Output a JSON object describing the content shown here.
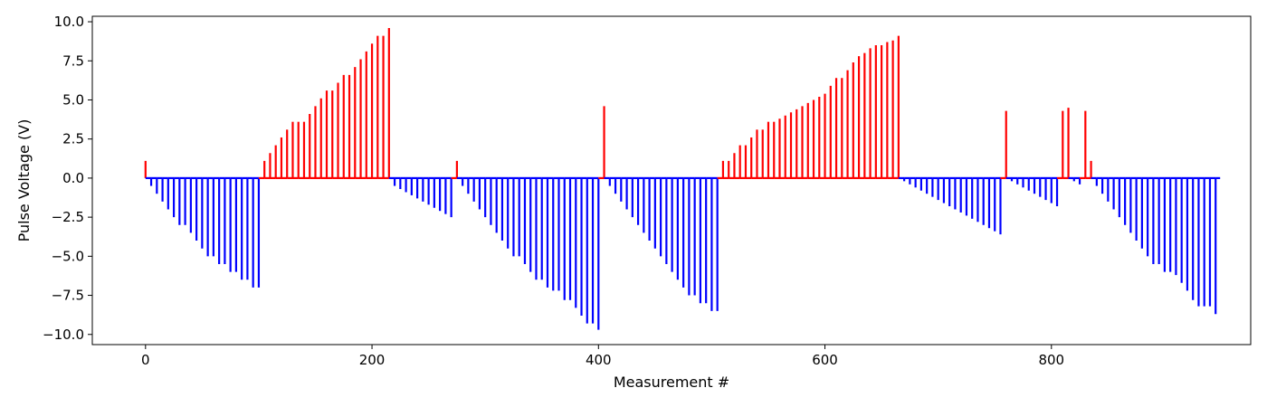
{
  "chart_data": {
    "type": "bar",
    "title": "",
    "xlabel": "Measurement #",
    "ylabel": "Pulse Voltage (V)",
    "xlim": [
      -47,
      976
    ],
    "ylim": [
      -10.65,
      10.35
    ],
    "xticks": [
      0,
      200,
      400,
      600,
      800
    ],
    "yticks": [
      -10.0,
      -7.5,
      -5.0,
      -2.5,
      0.0,
      2.5,
      5.0,
      7.5,
      10.0
    ],
    "xtick_labels": [
      "0",
      "200",
      "400",
      "600",
      "800"
    ],
    "ytick_labels": [
      "−10.0",
      "−7.5",
      "−5.0",
      "−2.5",
      "0.0",
      "2.5",
      "5.0",
      "7.5",
      "10.0"
    ],
    "colors": {
      "positive": "#ff0000",
      "negative": "#0000ff",
      "axes": "#000000"
    },
    "baseline": {
      "from": 0,
      "to": 949,
      "value": 0
    },
    "grid": false,
    "series": [
      {
        "x": [
          0,
          5,
          10,
          15,
          20,
          25,
          30,
          35,
          40,
          45,
          50,
          55,
          60,
          65,
          70,
          75,
          80,
          85,
          90,
          95,
          100,
          105,
          110,
          115,
          120,
          125,
          130,
          135,
          140,
          145,
          150,
          155,
          160,
          165,
          170,
          175,
          180,
          185,
          190,
          195,
          200,
          205,
          210,
          215,
          220,
          225,
          230,
          235,
          240,
          245,
          250,
          255,
          260,
          265,
          270,
          275,
          280,
          285,
          290,
          295,
          300,
          305,
          310,
          315,
          320,
          325,
          330,
          335,
          340,
          345,
          350,
          355,
          360,
          365,
          370,
          375,
          380,
          385,
          390,
          395,
          400,
          405,
          410,
          415,
          420,
          425,
          430,
          435,
          440,
          445,
          450,
          455,
          460,
          465,
          470,
          475,
          480,
          485,
          490,
          495,
          500,
          505,
          510,
          515,
          520,
          525,
          530,
          535,
          540,
          545,
          550,
          555,
          560,
          565,
          570,
          575,
          580,
          585,
          590,
          595,
          600,
          605,
          610,
          615,
          620,
          625,
          630,
          635,
          640,
          645,
          650,
          655,
          660,
          665,
          670,
          675,
          680,
          685,
          690,
          695,
          700,
          705,
          710,
          715,
          720,
          725,
          730,
          735,
          740,
          745,
          750,
          755,
          760,
          765,
          770,
          775,
          780,
          785,
          790,
          795,
          800,
          805,
          810,
          815,
          820,
          825,
          830,
          835,
          840,
          845,
          850,
          855,
          860,
          865,
          870,
          875,
          880,
          885,
          890,
          895,
          900,
          905,
          910,
          915,
          920,
          925,
          930,
          935,
          940,
          945
        ],
        "values": [
          1.1,
          -0.5,
          -1.0,
          -1.5,
          -2.0,
          -2.5,
          -3.0,
          -3.0,
          -3.5,
          -4.0,
          -4.5,
          -5.0,
          -5.0,
          -5.5,
          -5.5,
          -6.0,
          -6.0,
          -6.5,
          -6.5,
          -7.0,
          -7.0,
          1.1,
          1.6,
          2.1,
          2.6,
          3.1,
          3.6,
          3.6,
          3.6,
          4.1,
          4.6,
          5.1,
          5.6,
          5.6,
          6.1,
          6.6,
          6.6,
          7.1,
          7.6,
          8.1,
          8.6,
          9.1,
          9.1,
          9.6,
          -0.5,
          -0.7,
          -0.9,
          -1.1,
          -1.3,
          -1.5,
          -1.7,
          -1.9,
          -2.1,
          -2.3,
          -2.5,
          1.1,
          -0.5,
          -1.0,
          -1.5,
          -2.0,
          -2.5,
          -3.0,
          -3.5,
          -4.0,
          -4.5,
          -5.0,
          -5.0,
          -5.5,
          -6.0,
          -6.5,
          -6.5,
          -7.0,
          -7.2,
          -7.2,
          -7.8,
          -7.8,
          -8.3,
          -8.8,
          -9.3,
          -9.3,
          -9.7,
          4.6,
          -0.5,
          -1.0,
          -1.5,
          -2.0,
          -2.5,
          -3.0,
          -3.5,
          -4.0,
          -4.5,
          -5.0,
          -5.5,
          -6.0,
          -6.5,
          -7.0,
          -7.5,
          -7.5,
          -8.0,
          -8.0,
          -8.5,
          -8.5,
          1.1,
          1.1,
          1.6,
          2.1,
          2.1,
          2.6,
          3.1,
          3.1,
          3.6,
          3.6,
          3.8,
          4.0,
          4.2,
          4.4,
          4.6,
          4.8,
          5.0,
          5.2,
          5.4,
          5.9,
          6.4,
          6.4,
          6.9,
          7.4,
          7.8,
          8.0,
          8.3,
          8.5,
          8.5,
          8.7,
          8.8,
          9.1,
          -0.2,
          -0.4,
          -0.6,
          -0.8,
          -1.0,
          -1.2,
          -1.4,
          -1.6,
          -1.8,
          -2.0,
          -2.2,
          -2.4,
          -2.6,
          -2.8,
          -3.0,
          -3.2,
          -3.4,
          -3.6,
          4.3,
          -0.2,
          -0.4,
          -0.6,
          -0.8,
          -1.0,
          -1.2,
          -1.4,
          -1.6,
          -1.8,
          4.3,
          4.5,
          -0.2,
          -0.4,
          4.3,
          1.1,
          -0.5,
          -1.0,
          -1.5,
          -2.0,
          -2.5,
          -3.0,
          -3.5,
          -4.0,
          -4.5,
          -5.0,
          -5.5,
          -5.5,
          -6.0,
          -6.0,
          -6.2,
          -6.7,
          -7.2,
          -7.8,
          -8.2,
          -8.2,
          -8.2,
          -8.7
        ]
      }
    ]
  }
}
